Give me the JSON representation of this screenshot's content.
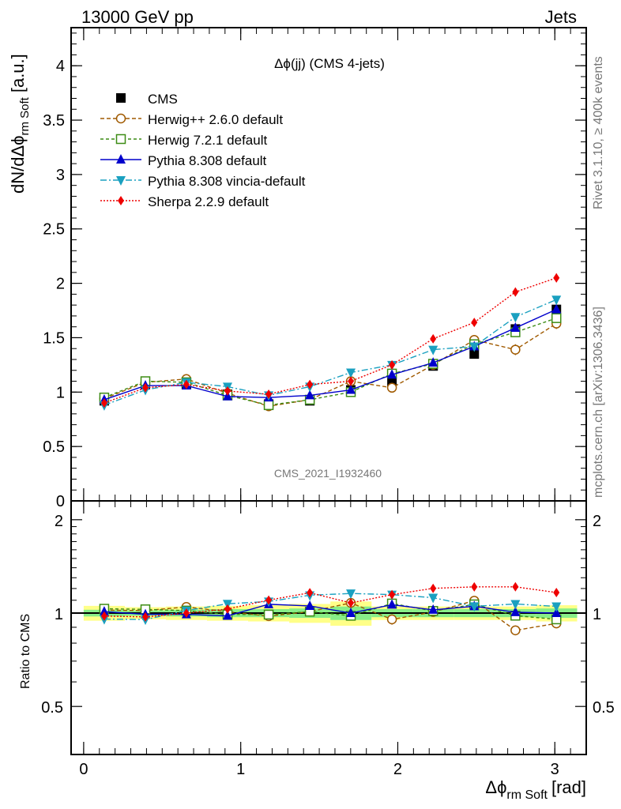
{
  "header": {
    "process": "13000 GeV pp",
    "category": "Jets"
  },
  "side_labels": {
    "rivet": "Rivet 3.1.10, ≥ 400k events",
    "mcplots": "mcplots.cern.ch [arXiv:1306.3436]"
  },
  "chart_data": {
    "type": "line",
    "title": "Δϕ(jj) (CMS 4-jets)",
    "analysis_id": "CMS_2021_I1932460",
    "xlabel": "Δϕ rm Soft [rad]",
    "xlabel_main": "Δϕ",
    "xlabel_sub": "rm Soft",
    "xlabel_unit": "[rad]",
    "ylabel": "dN/dΔϕ rm Soft [a.u.]",
    "ylabel_main": "dN/dΔϕ",
    "ylabel_sub": "rm Soft",
    "ylabel_unit": "[a.u.]",
    "ratio_ylabel": "Ratio to CMS",
    "xlim": [
      -0.08,
      3.2
    ],
    "ylim": [
      0,
      4.35
    ],
    "ratio_ylim": [
      0.35,
      2.3
    ],
    "x_ticks": [
      0,
      1,
      2,
      3
    ],
    "x_tick_labels": [
      "0",
      "1",
      "2",
      "3"
    ],
    "y_ticks": [
      0,
      0.5,
      1,
      1.5,
      2,
      2.5,
      3,
      3.5,
      4
    ],
    "y_tick_labels": [
      "0",
      "0.5",
      "1",
      "1.5",
      "2",
      "2.5",
      "3",
      "3.5",
      "4"
    ],
    "ratio_ticks": [
      0.5,
      1,
      2
    ],
    "ratio_tick_labels": [
      "0.5",
      "1",
      "2"
    ],
    "x": [
      0.131,
      0.393,
      0.654,
      0.916,
      1.178,
      1.44,
      1.701,
      1.963,
      2.225,
      2.487,
      2.749,
      3.01
    ],
    "bin_edges": [
      0,
      0.262,
      0.524,
      0.785,
      1.047,
      1.309,
      1.571,
      1.833,
      2.094,
      2.356,
      2.618,
      2.88,
      3.142
    ],
    "data": {
      "name": "CMS",
      "values": [
        0.92,
        1.07,
        1.07,
        0.98,
        0.89,
        0.92,
        1.02,
        1.09,
        1.24,
        1.35,
        1.58,
        1.76
      ],
      "band_inner": [
        0.025,
        0.02,
        0.025,
        0.03,
        0.03,
        0.035,
        0.05,
        0.03,
        0.03,
        0.03,
        0.03,
        0.035
      ],
      "band_outer": [
        0.055,
        0.045,
        0.05,
        0.055,
        0.06,
        0.07,
        0.09,
        0.05,
        0.05,
        0.05,
        0.05,
        0.06
      ]
    },
    "series": [
      {
        "name": "Herwig++ 2.6.0 default",
        "color": "#a05a00",
        "marker": "open-circle",
        "dash": "5,3",
        "values": [
          0.94,
          1.09,
          1.12,
          0.99,
          0.87,
          0.93,
          1.1,
          1.04,
          1.25,
          1.48,
          1.39,
          1.63
        ],
        "errors": [
          0.03,
          0.03,
          0.035,
          0.03,
          0.03,
          0.03,
          0.035,
          0.04,
          0.04,
          0.045,
          0.05,
          0.05
        ]
      },
      {
        "name": "Herwig 7.2.1 default",
        "color": "#3c8c14",
        "marker": "open-square",
        "dash": "4,3",
        "values": [
          0.95,
          1.1,
          1.09,
          0.97,
          0.88,
          0.93,
          1.0,
          1.17,
          1.26,
          1.44,
          1.55,
          1.68
        ],
        "errors": [
          0.02,
          0.02,
          0.02,
          0.02,
          0.02,
          0.02,
          0.02,
          0.025,
          0.025,
          0.03,
          0.03,
          0.03
        ]
      },
      {
        "name": "Pythia 8.308 default",
        "color": "#0000cc",
        "marker": "filled-triangle-up",
        "dash": "",
        "values": [
          0.93,
          1.06,
          1.06,
          0.96,
          0.95,
          0.97,
          1.02,
          1.16,
          1.27,
          1.42,
          1.59,
          1.76
        ],
        "errors": [
          0.015,
          0.015,
          0.015,
          0.015,
          0.015,
          0.015,
          0.015,
          0.02,
          0.02,
          0.02,
          0.025,
          0.025
        ]
      },
      {
        "name": "Pythia 8.308 vincia-default",
        "color": "#1aa0c0",
        "marker": "filled-triangle-down",
        "dash": "8,3,2,3",
        "values": [
          0.88,
          1.02,
          1.09,
          1.05,
          0.97,
          1.05,
          1.18,
          1.25,
          1.39,
          1.42,
          1.69,
          1.85
        ],
        "errors": [
          0.02,
          0.02,
          0.02,
          0.02,
          0.02,
          0.02,
          0.02,
          0.025,
          0.025,
          0.03,
          0.03,
          0.03
        ]
      },
      {
        "name": "Sherpa 2.2.9 default",
        "color": "#ee0000",
        "marker": "filled-diamond",
        "dash": "2,2",
        "values": [
          0.9,
          1.04,
          1.07,
          1.01,
          0.98,
          1.07,
          1.1,
          1.25,
          1.49,
          1.64,
          1.92,
          2.05
        ],
        "errors": [
          0.025,
          0.025,
          0.025,
          0.025,
          0.025,
          0.025,
          0.03,
          0.03,
          0.035,
          0.035,
          0.04,
          0.04
        ]
      }
    ],
    "grid": false,
    "legend_position": "top-left"
  }
}
